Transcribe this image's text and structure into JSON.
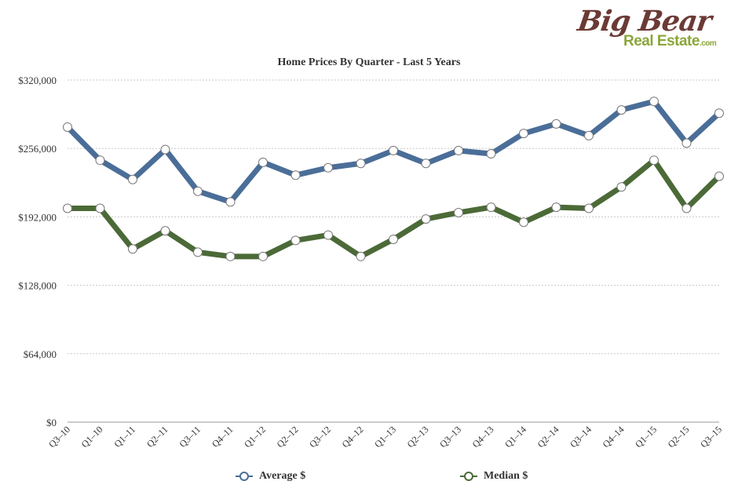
{
  "logo": {
    "big": "Big Bear",
    "sub": "Real Estate",
    "com": ".com"
  },
  "colors": {
    "average": "#4a6e98",
    "median": "#4b6a37",
    "grid": "#c8c8c8",
    "text": "#333333"
  },
  "chart_data": {
    "type": "line",
    "title": "Home Prices By Quarter - Last 5 Years",
    "xlabel": "",
    "ylabel": "",
    "categories": [
      "Q3–10",
      "Q1–10",
      "Q1–11",
      "Q2–11",
      "Q3–11",
      "Q4–11",
      "Q1–12",
      "Q2–12",
      "Q3–12",
      "Q4–12",
      "Q1–13",
      "Q2–13",
      "Q3–13",
      "Q4–13",
      "Q1–14",
      "Q2–14",
      "Q3–14",
      "Q4–14",
      "Q1–15",
      "Q2–15",
      "Q3–15"
    ],
    "ylim": [
      0,
      320000
    ],
    "yticks": [
      0,
      64000,
      128000,
      192000,
      256000,
      320000
    ],
    "ytick_labels": [
      "$0",
      "$64,000",
      "$128,000",
      "$192,000",
      "$256,000",
      "$320,000"
    ],
    "grid": true,
    "legend_position": "bottom",
    "series": [
      {
        "name": "Average $",
        "color": "#4a6e98",
        "values": [
          276000,
          245000,
          227000,
          255000,
          216000,
          206000,
          243000,
          231000,
          238000,
          242000,
          254000,
          242000,
          254000,
          251000,
          270000,
          279000,
          268000,
          292000,
          300000,
          261000,
          289000
        ]
      },
      {
        "name": "Median $",
        "color": "#4b6a37",
        "values": [
          200000,
          200000,
          162000,
          179000,
          159000,
          155000,
          155000,
          170000,
          175000,
          155000,
          171000,
          190000,
          196000,
          201000,
          187000,
          201000,
          200000,
          220000,
          245000,
          200000,
          230000
        ]
      }
    ]
  }
}
